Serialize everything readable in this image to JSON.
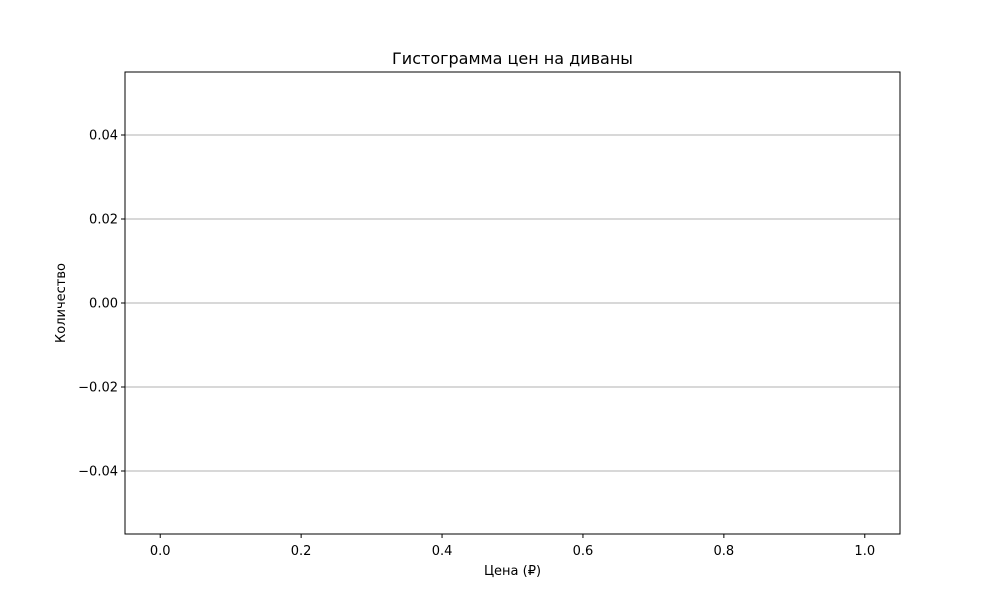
{
  "chart_data": {
    "type": "bar",
    "title": "Гистограмма цен на диваны",
    "xlabel": "Цена (₽)",
    "ylabel": "Количество",
    "xlim": [
      -0.05,
      1.05
    ],
    "ylim": [
      -0.055,
      0.055
    ],
    "x_ticks": [
      0.0,
      0.2,
      0.4,
      0.6,
      0.8,
      1.0
    ],
    "x_tick_labels": [
      "0.0",
      "0.2",
      "0.4",
      "0.6",
      "0.8",
      "1.0"
    ],
    "y_ticks": [
      -0.04,
      -0.02,
      0.0,
      0.02,
      0.04
    ],
    "y_tick_labels": [
      "−0.04",
      "−0.02",
      "0.00",
      "0.02",
      "0.04"
    ],
    "grid": "horizontal",
    "grid_color": "#b0b0b0",
    "categories": [],
    "values": []
  }
}
